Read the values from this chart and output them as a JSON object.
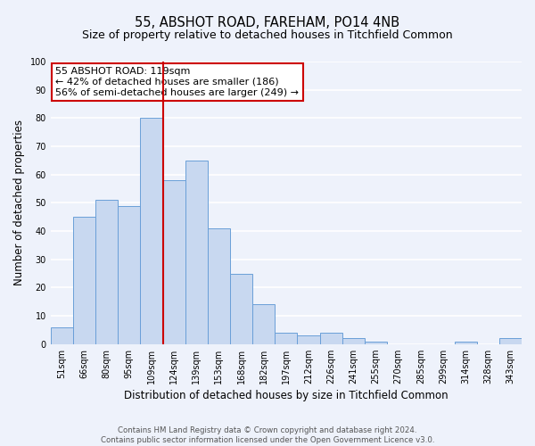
{
  "title": "55, ABSHOT ROAD, FAREHAM, PO14 4NB",
  "subtitle": "Size of property relative to detached houses in Titchfield Common",
  "xlabel": "Distribution of detached houses by size in Titchfield Common",
  "ylabel": "Number of detached properties",
  "bar_labels": [
    "51sqm",
    "66sqm",
    "80sqm",
    "95sqm",
    "109sqm",
    "124sqm",
    "139sqm",
    "153sqm",
    "168sqm",
    "182sqm",
    "197sqm",
    "212sqm",
    "226sqm",
    "241sqm",
    "255sqm",
    "270sqm",
    "285sqm",
    "299sqm",
    "314sqm",
    "328sqm",
    "343sqm"
  ],
  "bar_values": [
    6,
    45,
    51,
    49,
    80,
    58,
    65,
    41,
    25,
    14,
    4,
    3,
    4,
    2,
    1,
    0,
    0,
    0,
    1,
    0,
    2
  ],
  "bar_color": "#c8d8f0",
  "bar_edge_color": "#6a9fd8",
  "marker_line_index": 5,
  "marker_line_color": "#cc0000",
  "ylim": [
    0,
    100
  ],
  "yticks": [
    0,
    10,
    20,
    30,
    40,
    50,
    60,
    70,
    80,
    90,
    100
  ],
  "annotation_title": "55 ABSHOT ROAD: 119sqm",
  "annotation_line1": "← 42% of detached houses are smaller (186)",
  "annotation_line2": "56% of semi-detached houses are larger (249) →",
  "annotation_box_color": "#ffffff",
  "annotation_box_edge": "#cc0000",
  "footer1": "Contains HM Land Registry data © Crown copyright and database right 2024.",
  "footer2": "Contains public sector information licensed under the Open Government Licence v3.0.",
  "bg_color": "#eef2fb",
  "grid_color": "#ffffff",
  "title_fontsize": 10.5,
  "subtitle_fontsize": 9,
  "tick_fontsize": 7,
  "ylabel_fontsize": 8.5,
  "xlabel_fontsize": 8.5,
  "annotation_fontsize": 8,
  "footer_fontsize": 6.2
}
